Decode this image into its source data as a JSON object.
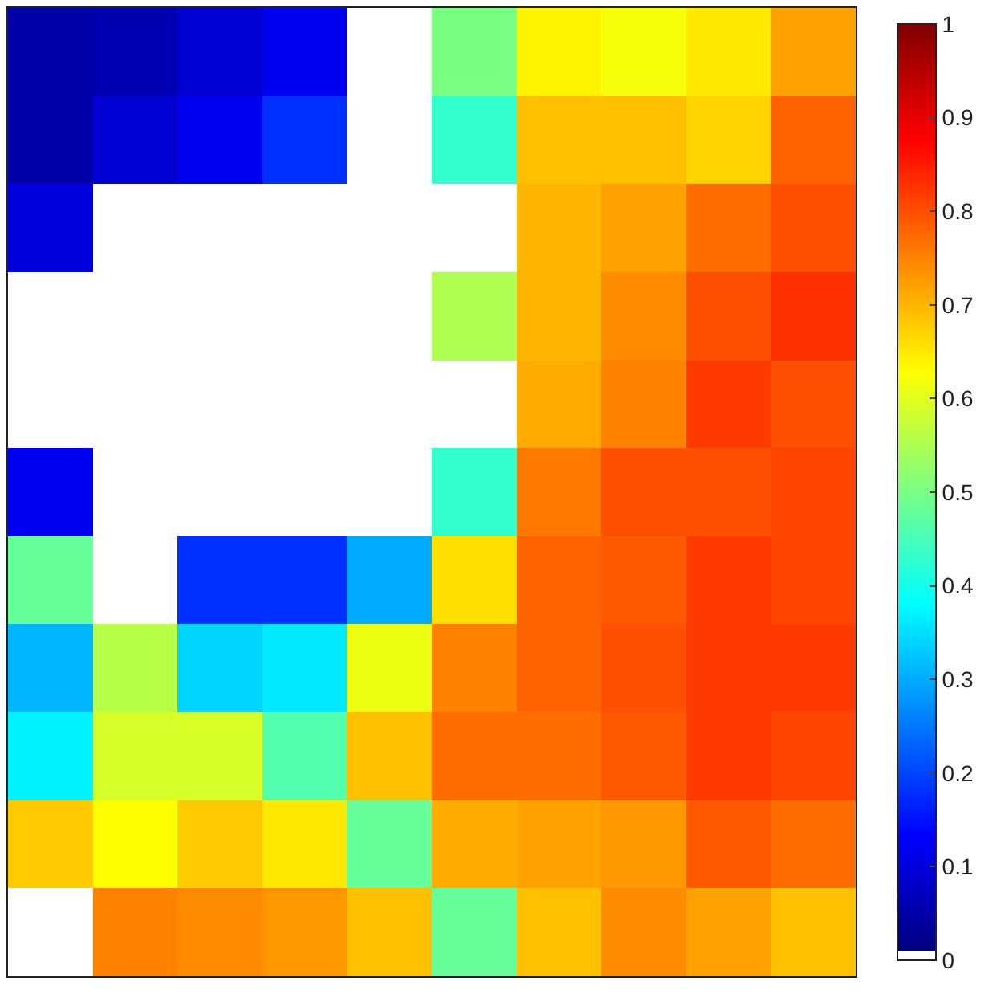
{
  "chart_data": {
    "type": "heatmap",
    "categories": [
      null,
      null,
      null,
      null,
      null,
      null,
      null,
      null,
      null,
      null
    ],
    "y_categories": [
      null,
      null,
      null,
      null,
      null,
      null,
      null,
      null,
      null,
      null,
      null
    ],
    "cells": [
      [
        0.05,
        0.06,
        0.09,
        0.12,
        0,
        0.5,
        0.64,
        0.62,
        0.65,
        0.72
      ],
      [
        0.05,
        0.09,
        0.12,
        0.18,
        0,
        0.43,
        0.69,
        0.69,
        0.67,
        0.78
      ],
      [
        0.1,
        0,
        0,
        0,
        0,
        0,
        0.7,
        0.72,
        0.77,
        0.8
      ],
      [
        0,
        0,
        0,
        0,
        0,
        0.55,
        0.7,
        0.74,
        0.8,
        0.83
      ],
      [
        0,
        0,
        0,
        0,
        0,
        0,
        0.71,
        0.75,
        0.82,
        0.8
      ],
      [
        0.12,
        0,
        0,
        0,
        0,
        0.43,
        0.76,
        0.8,
        0.8,
        0.81
      ],
      [
        0.48,
        0,
        0.18,
        0.18,
        0.3,
        0.66,
        0.78,
        0.79,
        0.82,
        0.81
      ],
      [
        0.31,
        0.56,
        0.34,
        0.36,
        0.61,
        0.75,
        0.78,
        0.8,
        0.82,
        0.82
      ],
      [
        0.37,
        0.59,
        0.59,
        0.46,
        0.69,
        0.77,
        0.77,
        0.79,
        0.82,
        0.81
      ],
      [
        0.68,
        0.63,
        0.68,
        0.65,
        0.48,
        0.71,
        0.72,
        0.73,
        0.79,
        0.77
      ],
      [
        0,
        0.75,
        0.74,
        0.73,
        0.69,
        0.48,
        0.69,
        0.74,
        0.72,
        0.69
      ]
    ],
    "clim": [
      0,
      1
    ],
    "cticks": [
      0,
      0.1,
      0.2,
      0.3,
      0.4,
      0.5,
      0.6,
      0.7,
      0.8,
      0.9,
      1
    ]
  }
}
